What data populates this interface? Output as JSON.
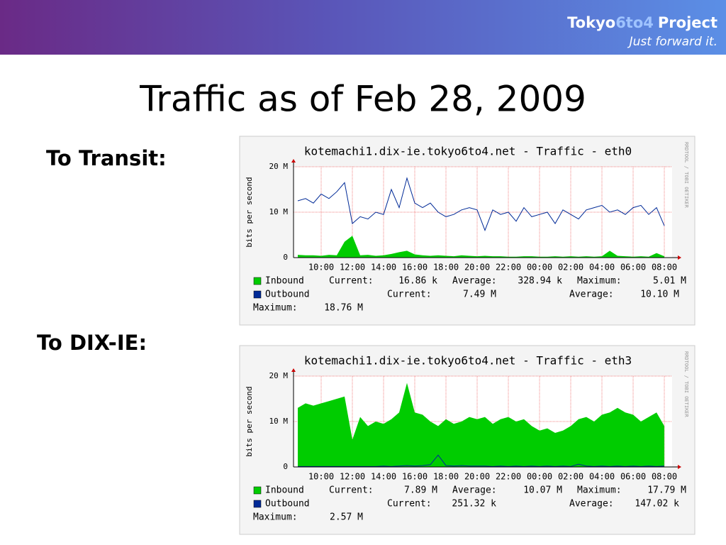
{
  "header": {
    "brand_a": "Tokyo",
    "brand_b": "6to4",
    "brand_c": "Project",
    "tagline": "Just forward it."
  },
  "title": "Traffic as of Feb 28, 2009",
  "labels": [
    "To Transit:",
    "To DIX-IE:"
  ],
  "chart_data": [
    {
      "type": "area",
      "title": "kotemachi1.dix-ie.tokyo6to4.net - Traffic - eth0",
      "y_label": "bits per second",
      "watermark": "RRDTOOL / TOBI OETIKER",
      "categories": [
        null,
        null,
        null,
        "10:00",
        null,
        null,
        null,
        "12:00",
        null,
        null,
        null,
        "14:00",
        null,
        null,
        null,
        "16:00",
        null,
        null,
        null,
        "18:00",
        null,
        null,
        null,
        "20:00",
        null,
        null,
        null,
        "22:00",
        null,
        null,
        null,
        "00:00",
        null,
        null,
        null,
        "02:00",
        null,
        null,
        null,
        "04:00",
        null,
        null,
        null,
        "06:00",
        null,
        null,
        null,
        "08:00"
      ],
      "ylim": [
        0,
        20000000
      ],
      "yticks": [
        {
          "value": 0,
          "label": "0"
        },
        {
          "value": 10000000,
          "label": "10 M"
        },
        {
          "value": 20000000,
          "label": "20 M"
        }
      ],
      "grid": true,
      "series": [
        {
          "name": "Inbound",
          "color": "#00cc00",
          "style": "area",
          "values": [
            600000,
            500000,
            500000,
            400000,
            600000,
            500000,
            3500000,
            4800000,
            500000,
            600000,
            400000,
            500000,
            800000,
            1200000,
            1500000,
            700000,
            500000,
            400000,
            500000,
            400000,
            300000,
            500000,
            400000,
            300000,
            400000,
            300000,
            300000,
            200000,
            200000,
            300000,
            300000,
            200000,
            200000,
            300000,
            200000,
            300000,
            200000,
            300000,
            200000,
            300000,
            1500000,
            400000,
            300000,
            200000,
            300000,
            200000,
            1000000,
            300000
          ],
          "stats": [
            {
              "label": "Current:",
              "value": "16.86 k"
            },
            {
              "label": "Average:",
              "value": "328.94 k"
            },
            {
              "label": "Maximum:",
              "value": "5.01 M"
            }
          ]
        },
        {
          "name": "Outbound",
          "color": "#002a97",
          "style": "line",
          "values": [
            12500000,
            13000000,
            12000000,
            14000000,
            13000000,
            14500000,
            16500000,
            7500000,
            9000000,
            8500000,
            10000000,
            9500000,
            15000000,
            11000000,
            17500000,
            12000000,
            11000000,
            12000000,
            10000000,
            9000000,
            9500000,
            10500000,
            11000000,
            10500000,
            6000000,
            10500000,
            9500000,
            10000000,
            8000000,
            11000000,
            9000000,
            9500000,
            10000000,
            7500000,
            10500000,
            9500000,
            8500000,
            10500000,
            11000000,
            11500000,
            10000000,
            10500000,
            9500000,
            11000000,
            11500000,
            9500000,
            11000000,
            7000000
          ],
          "stats": [
            {
              "label": "Current:",
              "value": "7.49 M"
            },
            {
              "label": "Average:",
              "value": "10.10 M"
            },
            {
              "label": "Maximum:",
              "value": "18.76 M"
            }
          ]
        }
      ]
    },
    {
      "type": "area",
      "title": "kotemachi1.dix-ie.tokyo6to4.net - Traffic - eth3",
      "y_label": "bits per second",
      "watermark": "RRDTOOL / TOBI OETIKER",
      "categories": [
        null,
        null,
        null,
        "10:00",
        null,
        null,
        null,
        "12:00",
        null,
        null,
        null,
        "14:00",
        null,
        null,
        null,
        "16:00",
        null,
        null,
        null,
        "18:00",
        null,
        null,
        null,
        "20:00",
        null,
        null,
        null,
        "22:00",
        null,
        null,
        null,
        "00:00",
        null,
        null,
        null,
        "02:00",
        null,
        null,
        null,
        "04:00",
        null,
        null,
        null,
        "06:00",
        null,
        null,
        null,
        "08:00"
      ],
      "ylim": [
        0,
        20000000
      ],
      "yticks": [
        {
          "value": 0,
          "label": "0"
        },
        {
          "value": 10000000,
          "label": "10 M"
        },
        {
          "value": 20000000,
          "label": "20 M"
        }
      ],
      "grid": true,
      "series": [
        {
          "name": "Inbound",
          "color": "#00cc00",
          "style": "area",
          "values": [
            13000000,
            14000000,
            13500000,
            14000000,
            14500000,
            15000000,
            15500000,
            6000000,
            11000000,
            9000000,
            10000000,
            9500000,
            10500000,
            12000000,
            18500000,
            12000000,
            11500000,
            10000000,
            9000000,
            10500000,
            9500000,
            10000000,
            11000000,
            10500000,
            11000000,
            9500000,
            10500000,
            11000000,
            10000000,
            10500000,
            9000000,
            8000000,
            8500000,
            7500000,
            8000000,
            9000000,
            10500000,
            11000000,
            10000000,
            11500000,
            12000000,
            13000000,
            12000000,
            11500000,
            10000000,
            11000000,
            12000000,
            9000000
          ],
          "stats": [
            {
              "label": "Current:",
              "value": "7.89 M"
            },
            {
              "label": "Average:",
              "value": "10.07 M"
            },
            {
              "label": "Maximum:",
              "value": "17.79 M"
            }
          ]
        },
        {
          "name": "Outbound",
          "color": "#002a97",
          "style": "line",
          "values": [
            100000,
            100000,
            100000,
            100000,
            100000,
            100000,
            100000,
            100000,
            100000,
            100000,
            100000,
            200000,
            100000,
            200000,
            300000,
            200000,
            300000,
            500000,
            2600000,
            300000,
            200000,
            300000,
            200000,
            200000,
            200000,
            100000,
            200000,
            100000,
            200000,
            100000,
            200000,
            100000,
            200000,
            100000,
            200000,
            100000,
            600000,
            200000,
            100000,
            200000,
            100000,
            200000,
            100000,
            200000,
            100000,
            200000,
            100000,
            200000
          ],
          "stats": [
            {
              "label": "Current:",
              "value": "251.32 k"
            },
            {
              "label": "Average:",
              "value": "147.02 k"
            },
            {
              "label": "Maximum:",
              "value": "2.57 M"
            }
          ]
        }
      ]
    }
  ]
}
